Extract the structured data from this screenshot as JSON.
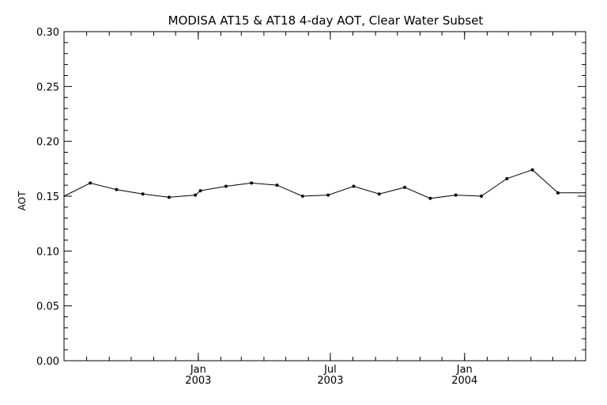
{
  "chart_data": {
    "type": "line",
    "title": "MODISA AT15 & AT18 4-day AOT, Clear Water Subset",
    "xlabel": "",
    "ylabel": "AOT",
    "ylim": [
      0.0,
      0.3
    ],
    "yticks": [
      "0.00",
      "0.05",
      "0.10",
      "0.15",
      "0.20",
      "0.25",
      "0.30"
    ],
    "xticks": [
      {
        "date": "2003-01-01",
        "label_top": "Jan",
        "label_bottom": "2003"
      },
      {
        "date": "2003-07-01",
        "label_top": "Jul",
        "label_bottom": "2003"
      },
      {
        "date": "2004-01-01",
        "label_top": "Jan",
        "label_bottom": "2004"
      }
    ],
    "xlim": [
      "2002-07-01",
      "2004-06-15"
    ],
    "grid": false,
    "series": [
      {
        "name": "",
        "x": [
          "2002-07-01",
          "2002-08-06",
          "2002-09-11",
          "2002-10-17",
          "2002-11-22",
          "2002-12-28",
          "2003-01-04",
          "2003-02-08",
          "2003-03-15",
          "2003-04-19",
          "2003-05-24",
          "2003-06-28",
          "2003-08-02",
          "2003-09-06",
          "2003-10-11",
          "2003-11-15",
          "2003-12-20",
          "2004-01-24",
          "2004-02-28",
          "2004-04-03",
          "2004-05-08",
          "2004-06-15"
        ],
        "values": [
          0.15,
          0.162,
          0.156,
          0.152,
          0.149,
          0.151,
          0.155,
          0.159,
          0.162,
          0.16,
          0.15,
          0.151,
          0.159,
          0.152,
          0.158,
          0.148,
          0.151,
          0.15,
          0.166,
          0.174,
          0.153,
          0.153
        ]
      }
    ]
  }
}
